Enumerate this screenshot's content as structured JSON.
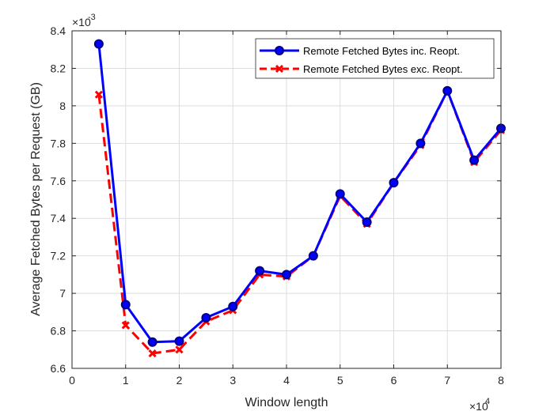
{
  "chart_data": {
    "type": "line",
    "xlabel": "Window length",
    "ylabel": "Average Fetched Bytes per Request (GB)",
    "x_exponent_base": "×10",
    "x_exponent_power": "4",
    "y_exponent_base": "×10",
    "y_exponent_power": "-3",
    "xlim": [
      0,
      80000
    ],
    "ylim": [
      0.0066,
      0.0084
    ],
    "x_ticks": [
      0,
      10000,
      20000,
      30000,
      40000,
      50000,
      60000,
      70000,
      80000
    ],
    "x_tick_labels": [
      "0",
      "1",
      "2",
      "3",
      "4",
      "5",
      "6",
      "7",
      "8"
    ],
    "y_ticks": [
      0.0066,
      0.0068,
      0.007,
      0.0072,
      0.0074,
      0.0076,
      0.0078,
      0.008,
      0.0082,
      0.0084
    ],
    "y_tick_labels": [
      "6.6",
      "6.8",
      "7",
      "7.2",
      "7.4",
      "7.6",
      "7.8",
      "8",
      "8.2",
      "8.4"
    ],
    "grid": true,
    "legend_position": "top-right",
    "x": [
      5000,
      10000,
      15000,
      20000,
      25000,
      30000,
      35000,
      40000,
      45000,
      50000,
      55000,
      60000,
      65000,
      70000,
      75000,
      80000
    ],
    "series": [
      {
        "name": "Remote Fetched Bytes inc. Reopt.",
        "color": "#0000ff",
        "line_style": "solid",
        "marker": "circle",
        "values": [
          0.00833,
          0.00694,
          0.00674,
          0.006745,
          0.00687,
          0.00693,
          0.00712,
          0.0071,
          0.0072,
          0.00753,
          0.00738,
          0.00759,
          0.0078,
          0.00808,
          0.00771,
          0.00788
        ]
      },
      {
        "name": "Remote Fetched Bytes exc. Reopt.",
        "color": "#ff0000",
        "line_style": "dashed",
        "marker": "x",
        "values": [
          0.00806,
          0.00683,
          0.00668,
          0.0067,
          0.00685,
          0.00691,
          0.0071,
          0.00709,
          0.0072,
          0.00752,
          0.00737,
          0.00759,
          0.00779,
          0.00808,
          0.0077,
          0.00787
        ]
      }
    ]
  }
}
